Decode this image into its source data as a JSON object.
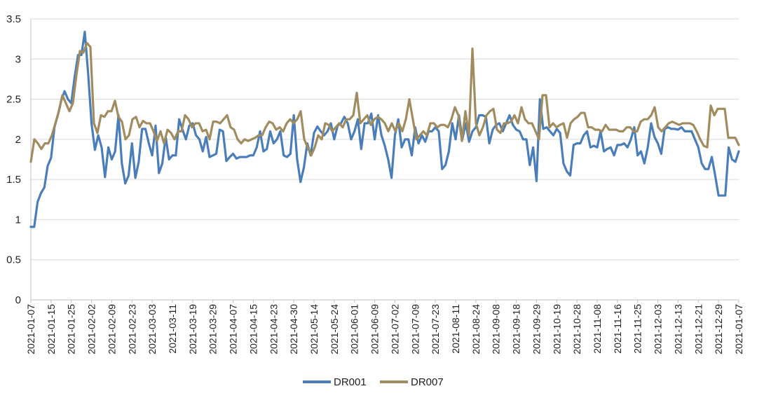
{
  "chart_data": {
    "type": "line",
    "title": "",
    "xlabel": "",
    "ylabel": "",
    "ylim": [
      0,
      3.5
    ],
    "yticks": [
      0,
      0.5,
      1,
      1.5,
      2,
      2.5,
      3,
      3.5
    ],
    "ytick_labels": [
      "0",
      "0.5",
      "1",
      "1.5",
      "2",
      "2.5",
      "3",
      "3.5"
    ],
    "x_tick_labels": [
      "2021-01-07",
      "2021-01-15",
      "2021-01-25",
      "2021-02-02",
      "2021-02-09",
      "2021-02-23",
      "2021-03-03",
      "2021-03-11",
      "2021-03-19",
      "2021-03-29",
      "2021-04-07",
      "2021-04-15",
      "2021-04-23",
      "2021-04-30",
      "2021-05-14",
      "2021-05-24",
      "2021-06-01",
      "2021-06-09",
      "2021-07-02",
      "2021-07-09",
      "2021-07-23",
      "2021-08-11",
      "2021-08-24",
      "2021-09-08",
      "2021-09-18",
      "2021-09-29",
      "2021-10-19",
      "2021-10-28",
      "2021-11-08",
      "2021-11-16",
      "2021-11-25",
      "2021-12-03",
      "2021-12-13",
      "2021-12-21",
      "2021-12-29",
      "2021-01-07"
    ],
    "grid": true,
    "legend_position": "bottom-center",
    "series": [
      {
        "name": "DR001",
        "color": "#4a7ebb",
        "values": [
          0.91,
          0.91,
          1.22,
          1.33,
          1.4,
          1.67,
          1.77,
          2.15,
          2.3,
          2.48,
          2.6,
          2.5,
          2.45,
          2.78,
          3.05,
          3.05,
          3.34,
          2.82,
          2.2,
          1.87,
          2.05,
          1.9,
          1.53,
          1.9,
          1.75,
          1.85,
          2.3,
          1.7,
          1.45,
          1.55,
          1.95,
          1.52,
          1.72,
          2.13,
          2.13,
          1.95,
          1.8,
          2.17,
          1.58,
          1.7,
          2.03,
          1.75,
          1.8,
          1.8,
          2.25,
          2.12,
          2.0,
          2.17,
          2.2,
          2.05,
          2.0,
          1.85,
          2.03,
          1.78,
          1.8,
          1.82,
          2.12,
          2.1,
          1.73,
          1.78,
          1.82,
          1.76,
          1.78,
          1.78,
          1.78,
          1.8,
          1.8,
          1.9,
          2.1,
          1.85,
          1.88,
          2.1,
          1.95,
          2.0,
          2.1,
          1.8,
          1.78,
          1.82,
          2.3,
          1.75,
          1.47,
          1.65,
          1.95,
          1.8,
          2.08,
          2.16,
          2.1,
          2.05,
          2.1,
          2.2,
          2.0,
          2.17,
          2.2,
          2.28,
          2.2,
          2.0,
          2.1,
          2.25,
          1.88,
          2.2,
          2.2,
          2.32,
          2.0,
          2.3,
          2.05,
          1.92,
          1.75,
          1.52,
          2.05,
          2.25,
          1.9,
          2.0,
          2.0,
          1.8,
          2.15,
          1.95,
          2.05,
          1.97,
          2.1,
          2.1,
          2.15,
          2.1,
          1.63,
          1.68,
          1.85,
          2.2,
          2.0,
          2.3,
          2.0,
          2.2,
          1.97,
          2.1,
          2.15,
          2.3,
          2.3,
          2.28,
          1.95,
          2.12,
          2.18,
          2.2,
          2.1,
          2.2,
          2.3,
          2.18,
          2.12,
          2.1,
          2.0,
          2.0,
          1.68,
          1.9,
          1.48,
          2.5,
          2.13,
          2.15,
          2.1,
          2.05,
          2.13,
          2.08,
          1.7,
          1.6,
          1.55,
          1.93,
          1.95,
          1.95,
          2.05,
          2.1,
          1.9,
          1.92,
          1.9,
          2.1,
          1.85,
          1.88,
          1.9,
          1.8,
          1.93,
          1.93,
          1.95,
          1.9,
          2.0,
          2.15,
          1.8,
          1.85,
          1.7,
          1.9,
          2.2,
          2.03,
          1.95,
          1.82,
          2.13,
          2.15,
          2.13,
          2.13,
          2.12,
          2.15,
          2.1,
          2.1,
          2.1,
          2.0,
          1.9,
          1.7,
          1.63,
          1.63,
          1.78,
          1.55,
          1.3,
          1.3,
          1.3,
          1.9,
          1.75,
          1.72,
          1.85
        ]
      },
      {
        "name": "DR007",
        "color": "#a08c5e",
        "values": [
          1.72,
          2.0,
          1.95,
          1.88,
          1.95,
          1.95,
          2.05,
          2.2,
          2.35,
          2.55,
          2.45,
          2.35,
          2.45,
          2.8,
          3.1,
          3.08,
          3.2,
          3.15,
          2.2,
          2.08,
          2.3,
          2.28,
          2.35,
          2.35,
          2.48,
          2.28,
          2.22,
          2.0,
          2.05,
          2.25,
          2.28,
          2.15,
          2.23,
          2.2,
          2.2,
          2.1,
          1.98,
          2.1,
          1.95,
          2.12,
          2.08,
          2.0,
          2.1,
          2.1,
          2.3,
          2.25,
          2.15,
          2.2,
          2.2,
          2.1,
          2.12,
          2.0,
          2.22,
          2.22,
          2.2,
          2.25,
          2.3,
          2.15,
          2.12,
          2.0,
          1.95,
          2.0,
          1.98,
          2.0,
          2.02,
          2.05,
          2.05,
          2.15,
          2.22,
          2.2,
          2.12,
          2.15,
          2.1,
          2.2,
          2.25,
          2.2,
          2.25,
          2.35,
          2.0,
          1.9,
          1.8,
          1.9,
          2.05,
          2.0,
          2.2,
          2.18,
          2.1,
          2.15,
          2.2,
          2.15,
          2.25,
          2.25,
          2.3,
          2.58,
          2.2,
          2.25,
          2.3,
          2.18,
          2.25,
          2.28,
          2.25,
          2.2,
          2.1,
          2.2,
          2.1,
          2.2,
          2.1,
          2.25,
          2.5,
          2.25,
          2.0,
          2.05,
          2.1,
          2.05,
          2.2,
          2.2,
          2.15,
          2.18,
          2.18,
          2.15,
          2.25,
          2.4,
          2.3,
          1.98,
          2.35,
          2.05,
          3.13,
          2.2,
          2.05,
          2.15,
          2.3,
          2.35,
          2.38,
          2.12,
          2.08,
          2.2,
          2.2,
          2.22,
          2.3,
          2.2,
          2.4,
          2.25,
          2.2,
          2.2,
          2.1,
          2.0,
          2.55,
          2.55,
          2.15,
          2.2,
          2.15,
          2.18,
          2.2,
          2.02,
          2.2,
          2.25,
          2.28,
          2.33,
          2.33,
          2.15,
          2.15,
          2.12,
          2.12,
          2.1,
          2.18,
          2.12,
          2.12,
          2.12,
          2.1,
          2.1,
          2.15,
          2.15,
          2.1,
          2.1,
          2.22,
          2.25,
          2.25,
          2.3,
          2.4,
          2.15,
          2.1,
          2.15,
          2.2,
          2.22,
          2.2,
          2.18,
          2.2,
          2.2,
          2.2,
          2.18,
          2.1,
          2.0,
          1.92,
          1.9,
          2.42,
          2.3,
          2.38,
          2.38,
          2.38,
          2.02,
          2.02,
          2.02,
          1.93
        ]
      }
    ]
  }
}
